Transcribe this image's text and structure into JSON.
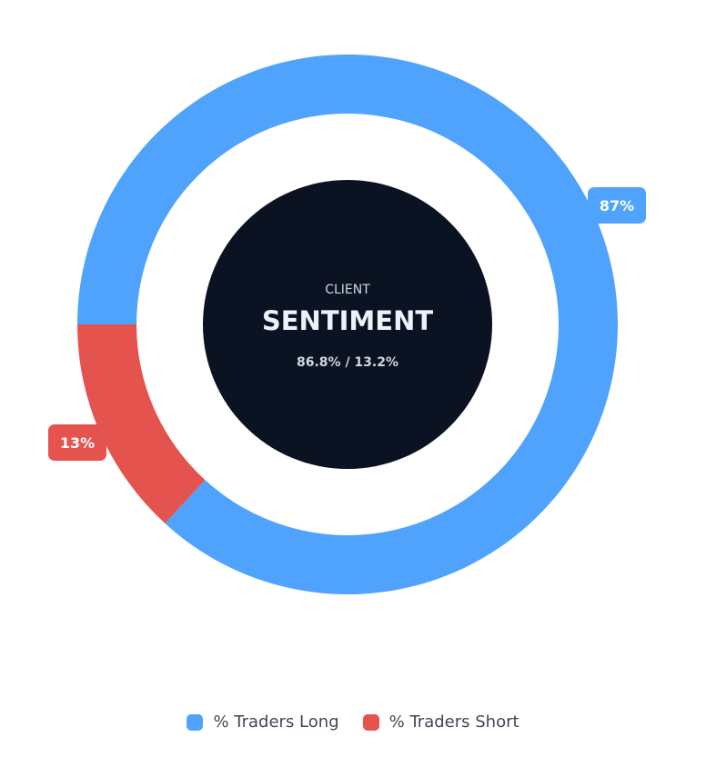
{
  "chart_data": {
    "type": "pie",
    "style": "donut",
    "center": {
      "kicker": "CLIENT",
      "title": "SENTIMENT",
      "ratio": "86.8% / 13.2%"
    },
    "slices": [
      {
        "name": "% Traders Long",
        "value": 86.8,
        "label": "87%",
        "color": "#4fa3fd"
      },
      {
        "name": "% Traders Short",
        "value": 13.2,
        "label": "13%",
        "color": "#e5534f"
      }
    ],
    "colors": {
      "center_fill": "#0b1222",
      "center_kicker": "#cfd6e4",
      "center_title": "#eef1f7",
      "center_ratio": "#cfd6e4",
      "label_text": "#ffffff",
      "legend_text": "#3f4756"
    },
    "legend": {
      "position": "bottom"
    }
  }
}
